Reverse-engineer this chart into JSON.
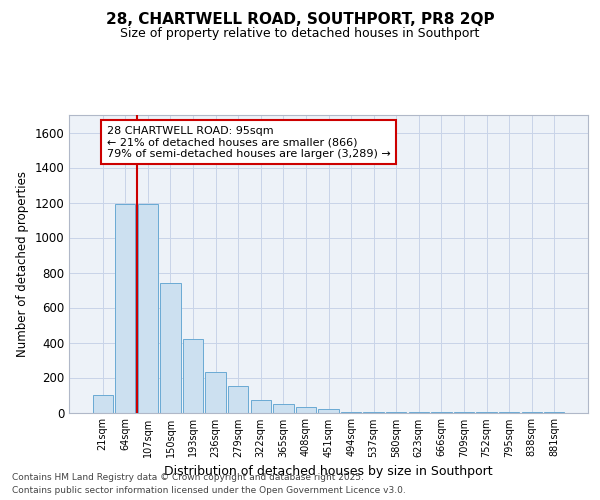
{
  "title": "28, CHARTWELL ROAD, SOUTHPORT, PR8 2QP",
  "subtitle": "Size of property relative to detached houses in Southport",
  "xlabel": "Distribution of detached houses by size in Southport",
  "ylabel": "Number of detached properties",
  "categories": [
    "21sqm",
    "64sqm",
    "107sqm",
    "150sqm",
    "193sqm",
    "236sqm",
    "279sqm",
    "322sqm",
    "365sqm",
    "408sqm",
    "451sqm",
    "494sqm",
    "537sqm",
    "580sqm",
    "623sqm",
    "666sqm",
    "709sqm",
    "752sqm",
    "795sqm",
    "838sqm",
    "881sqm"
  ],
  "values": [
    100,
    1190,
    1190,
    740,
    420,
    230,
    150,
    70,
    50,
    30,
    20,
    5,
    3,
    2,
    2,
    1,
    1,
    1,
    1,
    1,
    1
  ],
  "bar_color": "#cce0f0",
  "bar_edge_color": "#6aaad4",
  "grid_color": "#c8d4e8",
  "bg_color": "#edf2f8",
  "annotation_line1": "28 CHARTWELL ROAD: 95sqm",
  "annotation_line2": "← 21% of detached houses are smaller (866)",
  "annotation_line3": "79% of semi-detached houses are larger (3,289) →",
  "annotation_box_color": "#ffffff",
  "annotation_box_edge": "#cc0000",
  "vline_color": "#cc0000",
  "vline_x": 1.5,
  "ylim": [
    0,
    1700
  ],
  "yticks": [
    0,
    200,
    400,
    600,
    800,
    1000,
    1200,
    1400,
    1600
  ],
  "footer_line1": "Contains HM Land Registry data © Crown copyright and database right 2025.",
  "footer_line2": "Contains public sector information licensed under the Open Government Licence v3.0."
}
